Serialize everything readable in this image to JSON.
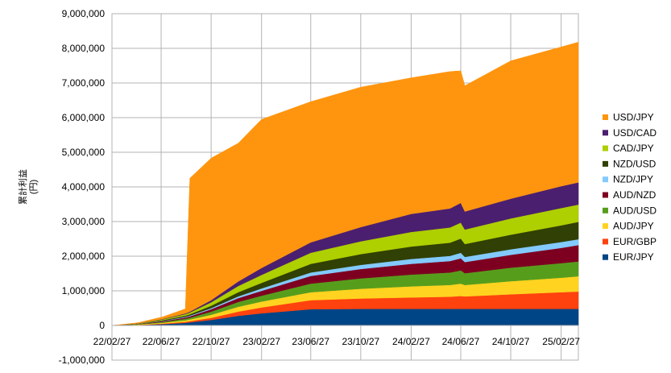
{
  "chart_data": {
    "type": "area",
    "stacked": true,
    "title": "",
    "xlabel": "",
    "ylabel_line1": "累計利益",
    "ylabel_line2": "(円)",
    "ylim": [
      -1000000,
      9000000
    ],
    "yticks": [
      "-1,000,000",
      "0",
      "1,000,000",
      "2,000,000",
      "3,000,000",
      "4,000,000",
      "5,000,000",
      "6,000,000",
      "7,000,000",
      "8,000,000",
      "9,000,000"
    ],
    "ytick_values": [
      -1000000,
      0,
      1000000,
      2000000,
      3000000,
      4000000,
      5000000,
      6000000,
      7000000,
      8000000,
      9000000
    ],
    "x_start": "22/02/27",
    "x_end": "25/04/10",
    "xticks": [
      "22/02/27",
      "22/06/27",
      "22/10/27",
      "23/02/27",
      "23/06/27",
      "23/10/27",
      "24/02/27",
      "24/06/27",
      "24/10/27",
      "25/02/27"
    ],
    "grid": true,
    "legend_position": "right",
    "x": [
      "22/02/27",
      "22/05/01",
      "22/07/01",
      "22/08/25",
      "22/09/05",
      "22/10/27",
      "23/01/01",
      "23/02/27",
      "23/06/27",
      "23/10/27",
      "24/02/27",
      "24/06/01",
      "24/06/27",
      "24/07/07",
      "24/10/27",
      "25/02/27",
      "25/04/10"
    ],
    "series": [
      {
        "name": "EUR/JPY",
        "color": "#004586",
        "values": [
          0,
          12000,
          40000,
          75000,
          90000,
          160000,
          280000,
          350000,
          470000,
          480000,
          480000,
          480000,
          480000,
          480000,
          480000,
          480000,
          480000
        ]
      },
      {
        "name": "EUR/GBP",
        "color": "#ff420e",
        "values": [
          0,
          5000,
          15000,
          30000,
          35000,
          60000,
          120000,
          170000,
          260000,
          300000,
          330000,
          350000,
          370000,
          360000,
          420000,
          480000,
          500000
        ]
      },
      {
        "name": "AUD/JPY",
        "color": "#ffd320",
        "values": [
          0,
          10000,
          25000,
          45000,
          50000,
          90000,
          140000,
          170000,
          230000,
          280000,
          320000,
          340000,
          360000,
          330000,
          380000,
          420000,
          440000
        ]
      },
      {
        "name": "AUD/USD",
        "color": "#579d1c",
        "values": [
          0,
          8000,
          25000,
          45000,
          50000,
          90000,
          140000,
          170000,
          250000,
          300000,
          340000,
          360000,
          380000,
          340000,
          390000,
          420000,
          430000
        ]
      },
      {
        "name": "AUD/NZD",
        "color": "#7e0021",
        "values": [
          0,
          6000,
          20000,
          35000,
          40000,
          70000,
          110000,
          140000,
          220000,
          270000,
          310000,
          330000,
          350000,
          320000,
          370000,
          440000,
          470000
        ]
      },
      {
        "name": "NZD/JPY",
        "color": "#83caff",
        "values": [
          0,
          3000,
          10000,
          18000,
          20000,
          30000,
          50000,
          70000,
          100000,
          120000,
          140000,
          150000,
          160000,
          150000,
          160000,
          170000,
          170000
        ]
      },
      {
        "name": "NZD/USD",
        "color": "#314004",
        "values": [
          0,
          5000,
          20000,
          35000,
          40000,
          70000,
          120000,
          160000,
          250000,
          310000,
          360000,
          380000,
          410000,
          370000,
          420000,
          480000,
          500000
        ]
      },
      {
        "name": "CAD/JPY",
        "color": "#aecf00",
        "values": [
          0,
          8000,
          25000,
          45000,
          50000,
          100000,
          180000,
          230000,
          320000,
          370000,
          420000,
          440000,
          460000,
          420000,
          470000,
          500000,
          500000
        ]
      },
      {
        "name": "USD/CAD",
        "color": "#4b1f6f",
        "values": [
          0,
          3000,
          10000,
          20000,
          25000,
          60000,
          130000,
          200000,
          300000,
          410000,
          520000,
          550000,
          570000,
          520000,
          570000,
          630000,
          640000
        ]
      },
      {
        "name": "USD/JPY",
        "color": "#ff950e",
        "values": [
          0,
          20000,
          60000,
          130000,
          3850000,
          4100000,
          3990000,
          4290000,
          4060000,
          4040000,
          3930000,
          3950000,
          3810000,
          3630000,
          3980000,
          4020000,
          4050000
        ]
      }
    ]
  }
}
